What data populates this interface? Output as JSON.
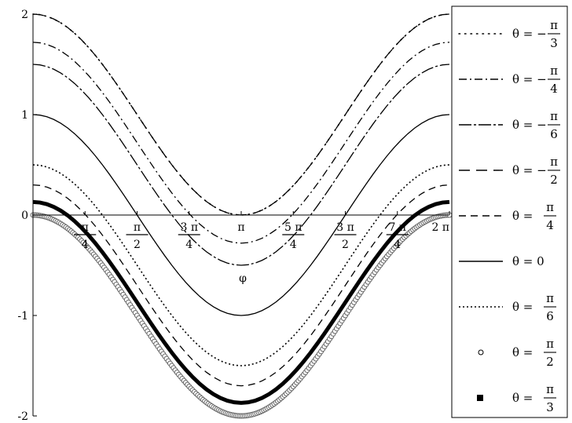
{
  "chart_data": {
    "type": "line",
    "title": "",
    "xlabel": "φ",
    "ylabel": "",
    "xlim": [
      0,
      6.283185307179586
    ],
    "ylim": [
      -2,
      2
    ],
    "grid": false,
    "legend_position": "right",
    "x_ticks": [
      {
        "value": 0.7853981633974483,
        "num": "π",
        "den": "4"
      },
      {
        "value": 1.5707963267948966,
        "num": "π",
        "den": "2"
      },
      {
        "value": 2.356194490192345,
        "num": "3 π",
        "den": "4"
      },
      {
        "value": 3.141592653589793,
        "num": "π",
        "den": ""
      },
      {
        "value": 3.9269908169872414,
        "num": "5 π",
        "den": "4"
      },
      {
        "value": 4.71238898038469,
        "num": "3 π",
        "den": "2"
      },
      {
        "value": 5.497787143782138,
        "num": "7 π",
        "den": "4"
      },
      {
        "value": 6.283185307179586,
        "num": "2 π",
        "den": ""
      }
    ],
    "y_ticks": [
      {
        "value": 2,
        "label": "2"
      },
      {
        "value": 1,
        "label": "1"
      },
      {
        "value": 0,
        "label": "0"
      },
      {
        "value": -1,
        "label": "-1"
      },
      {
        "value": -2,
        "label": "-2"
      }
    ],
    "x_samples": "61 evenly spaced points from 0 to 2π",
    "series": [
      {
        "name": "θ = −π/3",
        "style": "dot-sparse",
        "offset": 1.0,
        "amplitude": 1.0
      },
      {
        "name": "θ = −π/4",
        "style": "dashdot",
        "offset": 0.72,
        "amplitude": 1.0
      },
      {
        "name": "θ = −π/6",
        "style": "longdash-short",
        "offset": 0.5,
        "amplitude": 1.0
      },
      {
        "name": "θ = −π/2",
        "style": "dash-long",
        "offset": 1.0,
        "amplitude": 1.0
      },
      {
        "name": "θ = π/4",
        "style": "dash",
        "offset": -0.7,
        "amplitude": 1.0
      },
      {
        "name": "θ = 0",
        "style": "solid",
        "offset": 0.0,
        "amplitude": 1.0
      },
      {
        "name": "θ = π/6",
        "style": "dotted",
        "offset": -0.5,
        "amplitude": 1.0
      },
      {
        "name": "θ = π/2",
        "style": "circles",
        "offset": -1.0,
        "amplitude": 1.0
      },
      {
        "name": "θ = π/3",
        "style": "thick",
        "offset": -0.87,
        "amplitude": 1.0
      }
    ],
    "legend": [
      {
        "prefix": "θ = −",
        "num": "π",
        "den": "3",
        "style": "dot-sparse"
      },
      {
        "prefix": "θ = −",
        "num": "π",
        "den": "4",
        "style": "dashdot"
      },
      {
        "prefix": "θ = −",
        "num": "π",
        "den": "6",
        "style": "longdash-short"
      },
      {
        "prefix": "θ = −",
        "num": "π",
        "den": "2",
        "style": "dash-long"
      },
      {
        "prefix": "θ = ",
        "num": "π",
        "den": "4",
        "style": "dash"
      },
      {
        "prefix": "θ = 0",
        "num": "",
        "den": "",
        "style": "solid"
      },
      {
        "prefix": "θ = ",
        "num": "π",
        "den": "6",
        "style": "dotted"
      },
      {
        "prefix": "θ = ",
        "num": "π",
        "den": "2",
        "style": "circles"
      },
      {
        "prefix": "θ = ",
        "num": "π",
        "den": "3",
        "style": "thick"
      }
    ]
  }
}
